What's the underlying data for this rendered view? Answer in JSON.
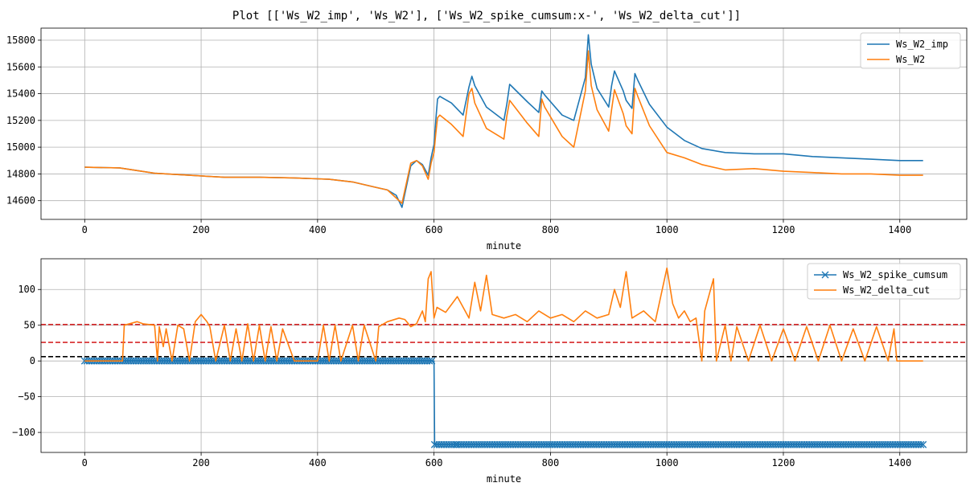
{
  "figure_title": "Plot [['Ws_W2_imp', 'Ws_W2'], ['Ws_W2_spike_cumsum:x-', 'Ws_W2_delta_cut']]",
  "colors": {
    "blue": "#1f77b4",
    "orange": "#ff7f0e",
    "red": "#d62728",
    "black": "#000000"
  },
  "chart_data": [
    {
      "type": "line",
      "xlabel": "minute",
      "ylabel": "",
      "xlim": [
        -75,
        1515
      ],
      "ylim": [
        14460,
        15890
      ],
      "grid": true,
      "legend_position": "top-right",
      "xticks": [
        0,
        200,
        400,
        600,
        800,
        1000,
        1200,
        1400
      ],
      "yticks": [
        14600,
        14800,
        15000,
        15200,
        15400,
        15600,
        15800
      ],
      "series": [
        {
          "name": "Ws_W2_imp",
          "color": "#1f77b4",
          "x": [
            0,
            60,
            120,
            180,
            240,
            300,
            360,
            420,
            460,
            500,
            520,
            535,
            545,
            560,
            570,
            580,
            590,
            595,
            600,
            603,
            606,
            610,
            630,
            650,
            660,
            665,
            670,
            690,
            720,
            725,
            730,
            760,
            780,
            785,
            790,
            820,
            840,
            860,
            865,
            870,
            880,
            900,
            905,
            910,
            925,
            930,
            940,
            945,
            950,
            970,
            1000,
            1030,
            1060,
            1100,
            1150,
            1200,
            1250,
            1300,
            1350,
            1400,
            1440
          ],
          "y": [
            14850,
            14845,
            14805,
            14790,
            14775,
            14775,
            14770,
            14760,
            14740,
            14700,
            14680,
            14640,
            14550,
            14860,
            14900,
            14870,
            14790,
            14920,
            15020,
            15200,
            15360,
            15380,
            15330,
            15240,
            15450,
            15530,
            15460,
            15300,
            15200,
            15320,
            15470,
            15340,
            15260,
            15420,
            15390,
            15240,
            15200,
            15520,
            15840,
            15620,
            15440,
            15300,
            15460,
            15570,
            15420,
            15350,
            15290,
            15550,
            15500,
            15320,
            15150,
            15050,
            14990,
            14960,
            14950,
            14950,
            14930,
            14920,
            14910,
            14900,
            14900
          ]
        },
        {
          "name": "Ws_W2",
          "color": "#ff7f0e",
          "x": [
            0,
            60,
            120,
            180,
            240,
            300,
            360,
            420,
            460,
            500,
            520,
            535,
            545,
            560,
            570,
            580,
            590,
            595,
            600,
            603,
            606,
            610,
            630,
            650,
            660,
            665,
            670,
            690,
            720,
            725,
            730,
            760,
            780,
            785,
            790,
            820,
            840,
            860,
            865,
            870,
            880,
            900,
            905,
            910,
            925,
            930,
            940,
            945,
            950,
            970,
            1000,
            1030,
            1060,
            1100,
            1150,
            1200,
            1250,
            1300,
            1350,
            1400,
            1440
          ],
          "y": [
            14850,
            14845,
            14805,
            14790,
            14775,
            14775,
            14770,
            14760,
            14740,
            14700,
            14680,
            14620,
            14580,
            14880,
            14900,
            14860,
            14760,
            14880,
            14960,
            15100,
            15220,
            15240,
            15170,
            15080,
            15400,
            15440,
            15330,
            15140,
            15060,
            15230,
            15350,
            15180,
            15080,
            15360,
            15300,
            15080,
            15000,
            15420,
            15720,
            15460,
            15280,
            15120,
            15280,
            15430,
            15250,
            15160,
            15100,
            15440,
            15380,
            15160,
            14960,
            14920,
            14870,
            14830,
            14840,
            14820,
            14810,
            14800,
            14800,
            14790,
            14790
          ]
        }
      ]
    },
    {
      "type": "line",
      "xlabel": "minute",
      "ylabel": "",
      "xlim": [
        -75,
        1515
      ],
      "ylim": [
        -128,
        143
      ],
      "grid": true,
      "legend_position": "top-right",
      "xticks": [
        0,
        200,
        400,
        600,
        800,
        1000,
        1200,
        1400
      ],
      "yticks": [
        -100,
        -50,
        0,
        50,
        100
      ],
      "hlines": [
        {
          "y": 51,
          "color": "#d62728",
          "style": "dashed"
        },
        {
          "y": 26,
          "color": "#d62728",
          "style": "dashed"
        },
        {
          "y": 6,
          "color": "#000000",
          "style": "dashed"
        }
      ],
      "series": [
        {
          "name": "Ws_W2_spike_cumsum",
          "color": "#1f77b4",
          "marker": "x",
          "x": [
            0,
            40,
            80,
            120,
            160,
            200,
            240,
            280,
            320,
            360,
            400,
            440,
            480,
            520,
            560,
            600,
            601,
            640,
            680,
            720,
            760,
            800,
            840,
            880,
            920,
            960,
            1000,
            1040,
            1080,
            1120,
            1160,
            1200,
            1240,
            1280,
            1320,
            1360,
            1400,
            1440
          ],
          "y": [
            0,
            0,
            0,
            0,
            0,
            0,
            0,
            0,
            0,
            0,
            0,
            0,
            0,
            0,
            0,
            0,
            -117,
            -117,
            -117,
            -117,
            -117,
            -117,
            -117,
            -117,
            -117,
            -117,
            -117,
            -117,
            -117,
            -117,
            -117,
            -117,
            -117,
            -117,
            -117,
            -117,
            -117,
            -117
          ]
        },
        {
          "name": "Ws_W2_delta_cut",
          "color": "#ff7f0e",
          "x": [
            0,
            65,
            68,
            90,
            100,
            120,
            125,
            128,
            135,
            140,
            150,
            160,
            170,
            180,
            190,
            200,
            210,
            215,
            225,
            240,
            250,
            260,
            270,
            280,
            290,
            300,
            310,
            320,
            330,
            340,
            360,
            400,
            410,
            420,
            430,
            440,
            460,
            470,
            480,
            500,
            505,
            520,
            540,
            550,
            560,
            570,
            580,
            585,
            590,
            595,
            600,
            605,
            620,
            640,
            660,
            670,
            680,
            690,
            700,
            720,
            740,
            760,
            780,
            800,
            820,
            840,
            860,
            880,
            900,
            910,
            920,
            930,
            940,
            960,
            980,
            1000,
            1010,
            1020,
            1030,
            1040,
            1050,
            1060,
            1065,
            1080,
            1085,
            1100,
            1110,
            1120,
            1140,
            1160,
            1180,
            1200,
            1220,
            1240,
            1260,
            1280,
            1300,
            1320,
            1340,
            1360,
            1380,
            1390,
            1395,
            1440
          ],
          "y": [
            0,
            0,
            50,
            55,
            52,
            50,
            0,
            48,
            20,
            45,
            0,
            50,
            45,
            0,
            55,
            65,
            55,
            48,
            0,
            50,
            0,
            45,
            0,
            52,
            0,
            50,
            0,
            48,
            0,
            45,
            0,
            0,
            50,
            0,
            50,
            0,
            50,
            0,
            50,
            0,
            48,
            55,
            60,
            58,
            48,
            52,
            70,
            55,
            115,
            125,
            60,
            75,
            68,
            90,
            60,
            110,
            70,
            120,
            65,
            60,
            65,
            55,
            70,
            60,
            65,
            55,
            70,
            60,
            65,
            100,
            75,
            125,
            60,
            70,
            55,
            130,
            80,
            60,
            70,
            55,
            60,
            0,
            70,
            115,
            0,
            50,
            0,
            48,
            0,
            50,
            0,
            45,
            0,
            48,
            0,
            50,
            0,
            45,
            0,
            48,
            0,
            45,
            0,
            0
          ]
        }
      ]
    }
  ]
}
